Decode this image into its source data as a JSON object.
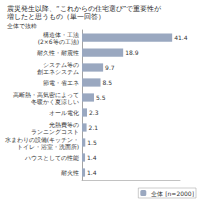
{
  "chart_data": {
    "type": "bar",
    "orientation": "horizontal",
    "title": "震災発生以降、“これからの住宅選び”で重要性が\n増したと思うもの（単一回答）",
    "subtitle": "全体で抜粋",
    "categories": [
      "構造体・工法\n(2×6等の工法)",
      "耐久性・耐震性",
      "システム等の\n創エネシステム",
      "節電・省エネ",
      "高断熱・高気密によって\n冬暖かく夏涼しい",
      "オール電化",
      "光熱費等の\nランニングコスト",
      "水まわりの設備(キッチン・\nトイレ・浴室・洗面所)",
      "ハウスとしての性能",
      "耐火性"
    ],
    "series": [
      {
        "name": "全体 [n=2000]",
        "color": "#9aa8c0",
        "values": [
          41.4,
          18.9,
          9.7,
          8.5,
          5.5,
          2.3,
          2.1,
          1.5,
          1.4,
          1.4
        ]
      }
    ],
    "xlim": [
      0,
      45
    ],
    "data_labels": true,
    "tick_labels": "y",
    "grid": false,
    "legend": "lower right"
  }
}
